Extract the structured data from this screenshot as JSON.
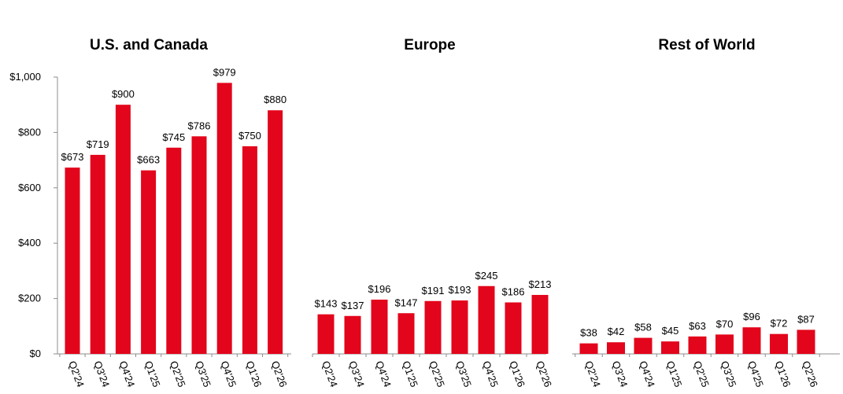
{
  "colors": {
    "bar": "#e3051b",
    "axis": "#8c8c8c"
  },
  "chart_data": {
    "type": "bar",
    "ylim": [
      0,
      1000
    ],
    "y_ticks": [
      0,
      200,
      400,
      600,
      800,
      1000
    ],
    "y_tick_labels": [
      "$0",
      "$200",
      "$400",
      "$600",
      "$800",
      "$1,000"
    ],
    "grid": false,
    "categories": [
      "Q2'24",
      "Q3'24",
      "Q4'24",
      "Q1'25",
      "Q2'25",
      "Q3'25",
      "Q4'25",
      "Q1'26",
      "Q2'26"
    ],
    "panels": [
      {
        "title": "U.S. and Canada",
        "values": [
          673,
          719,
          900,
          663,
          745,
          786,
          979,
          750,
          880
        ],
        "labels": [
          "$673",
          "$719",
          "$900",
          "$663",
          "$745",
          "$786",
          "$979",
          "$750",
          "$880"
        ]
      },
      {
        "title": "Europe",
        "values": [
          143,
          137,
          196,
          147,
          191,
          193,
          245,
          186,
          213
        ],
        "labels": [
          "$143",
          "$137",
          "$196",
          "$147",
          "$191",
          "$193",
          "$245",
          "$186",
          "$213"
        ]
      },
      {
        "title": "Rest of World",
        "values": [
          38,
          42,
          58,
          45,
          63,
          70,
          96,
          72,
          87
        ],
        "labels": [
          "$38",
          "$42",
          "$58",
          "$45",
          "$63",
          "$70",
          "$96",
          "$72",
          "$87"
        ]
      }
    ]
  }
}
